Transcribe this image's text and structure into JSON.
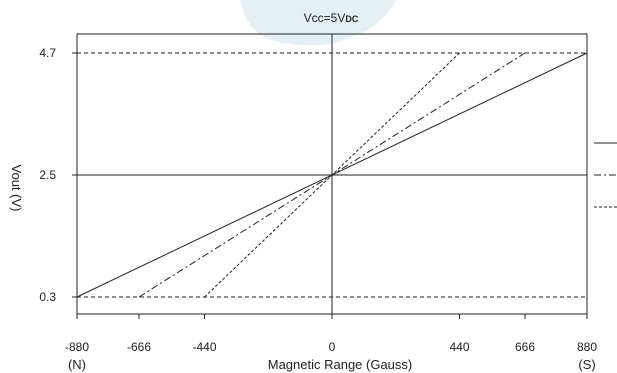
{
  "chart_data": {
    "type": "line",
    "condition": {
      "main": "Vcc=5V",
      "sub": "DC"
    },
    "xlabel": "Magnetic Range (Gauss)",
    "ylabel": "Vout (V)",
    "xlim": [
      -880,
      880
    ],
    "ylim": [
      0.3,
      4.7
    ],
    "x_ticks": [
      "-880",
      "-666",
      "-440",
      "0",
      "440",
      "666",
      "880"
    ],
    "x_tick_values": [
      -880,
      -666,
      -440,
      0,
      440,
      666,
      880
    ],
    "pole_labels": {
      "left": "(N)",
      "right": "(S)"
    },
    "y_ticks": [
      "0.3",
      "2.5",
      "4.7"
    ],
    "y_tick_values": [
      0.3,
      2.5,
      4.7
    ],
    "reference_lines": [
      {
        "axis": "y",
        "value": 4.7,
        "style": "dashed"
      },
      {
        "axis": "y",
        "value": 0.3,
        "style": "dashed"
      },
      {
        "axis": "y",
        "value": 2.5,
        "style": "solid"
      },
      {
        "axis": "x",
        "value": 0,
        "style": "solid"
      }
    ],
    "series": [
      {
        "style": "solid",
        "x": [
          -880,
          880
        ],
        "y": [
          0.3,
          4.7
        ]
      },
      {
        "style": "dash-dot",
        "x": [
          -666,
          666
        ],
        "y": [
          0.3,
          4.7
        ]
      },
      {
        "style": "dotted",
        "x": [
          -440,
          440
        ],
        "y": [
          0.3,
          4.7
        ]
      }
    ],
    "legend": {
      "placement": "right",
      "entries": [
        "",
        "",
        ""
      ]
    }
  },
  "colors": {
    "line": "#222222",
    "background": "#ffffff",
    "watermark": "#e4f0f4"
  }
}
